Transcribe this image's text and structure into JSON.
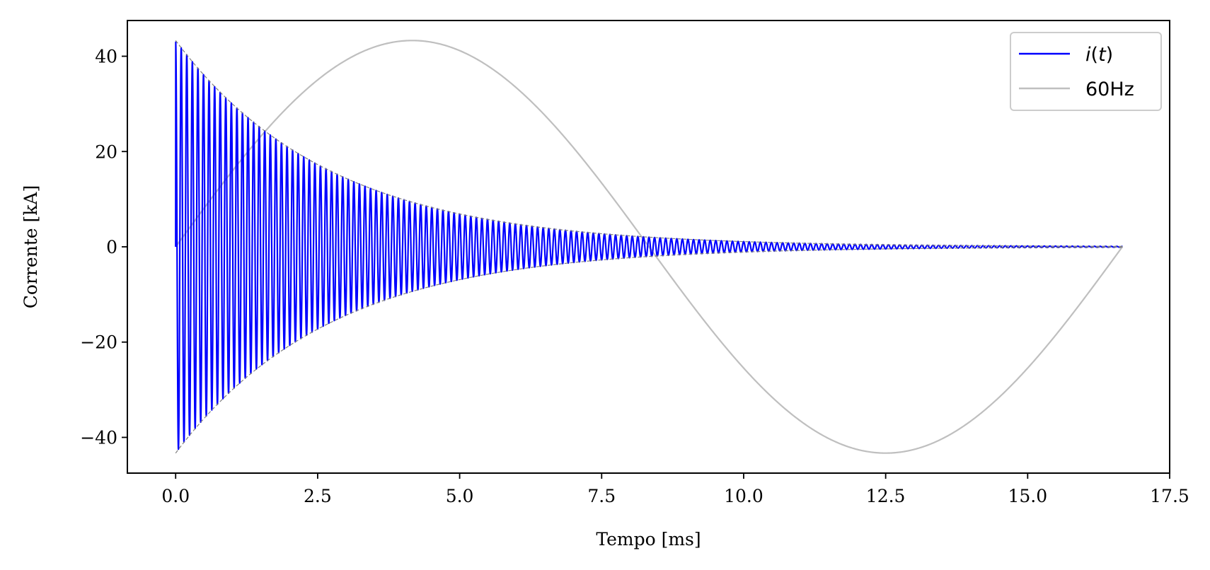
{
  "chart_data": {
    "type": "line",
    "xlabel": "Tempo [ms]",
    "ylabel": "Corrente [kA]",
    "xlim": [
      -0.85,
      17.5
    ],
    "ylim": [
      -47.5,
      47.5
    ],
    "x_ticks": [
      0.0,
      2.5,
      5.0,
      7.5,
      10.0,
      12.5,
      15.0,
      17.5
    ],
    "x_tick_labels": [
      "0.0",
      "2.5",
      "5.0",
      "7.5",
      "10.0",
      "12.5",
      "15.0",
      "17.5"
    ],
    "y_ticks": [
      -40,
      -20,
      0,
      20,
      40
    ],
    "y_tick_labels": [
      "−40",
      "−20",
      "0",
      "20",
      "40"
    ],
    "grid": false,
    "legend_position": "top-right",
    "series": [
      {
        "name": "i(t)",
        "legend_text": {
          "italic_1": "i",
          "roman": "(",
          "italic_2": "t",
          "roman_2": ")"
        },
        "color": "#0000ff",
        "kind": "damped_oscillation",
        "amplitude": 43.3,
        "decay_time_constant_ms": 2.72,
        "oscillation_frequency_khz": 10.2,
        "t_start_ms": 0.0,
        "t_end_ms": 16.67,
        "initial_value": 0.0
      },
      {
        "name": "60Hz",
        "color": "#bfbfbf",
        "kind": "sine",
        "amplitude": 43.3,
        "frequency_hz": 60,
        "t_start_ms": 0.0,
        "t_end_ms": 16.67
      }
    ],
    "envelope": {
      "color": "#808080",
      "style": "dashed",
      "amplitude": 43.3,
      "decay_time_constant_ms": 2.72,
      "t_start_ms": 0.0,
      "t_end_ms": 16.67
    },
    "sample_points": {
      "sine_60hz": [
        {
          "t": 0.0,
          "v": 0.0
        },
        {
          "t": 4.17,
          "v": 43.3
        },
        {
          "t": 8.33,
          "v": 0.0
        },
        {
          "t": 12.5,
          "v": -43.3
        },
        {
          "t": 16.67,
          "v": 0.0
        }
      ],
      "envelope_upper": [
        {
          "t": 0.0,
          "v": 43.3
        },
        {
          "t": 2.5,
          "v": 17.3
        },
        {
          "t": 5.0,
          "v": 6.9
        },
        {
          "t": 7.5,
          "v": 2.7
        },
        {
          "t": 10.0,
          "v": 1.1
        },
        {
          "t": 15.0,
          "v": 0.2
        }
      ]
    }
  }
}
